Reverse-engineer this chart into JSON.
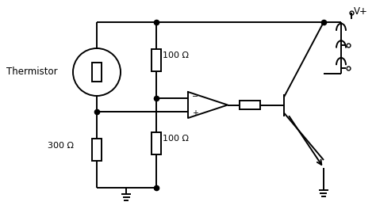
{
  "background_color": "#ffffff",
  "line_color": "#000000",
  "lw": 1.4,
  "thermistor_label": "Thermistor",
  "r1_label": "100 Ω",
  "r2_label": "300 Ω",
  "r3_label": "100 Ω",
  "vplus_label": "V+"
}
